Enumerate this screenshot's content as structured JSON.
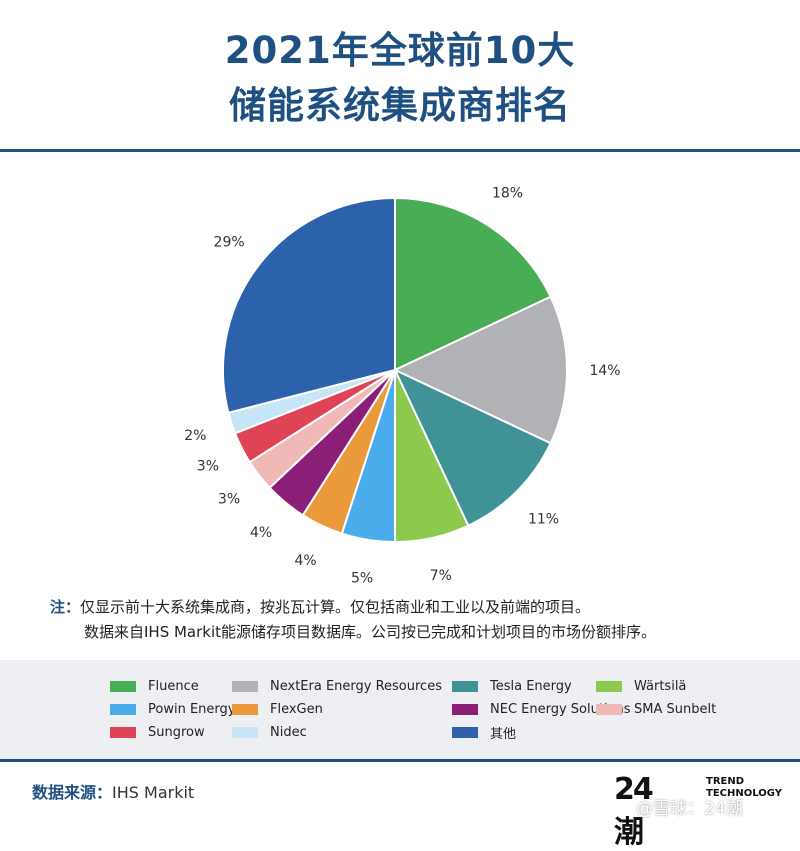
{
  "title": {
    "line1": "2021年全球前10大",
    "line2": "储能系统集成商排名"
  },
  "chart_data": {
    "type": "pie",
    "categories": [
      "Fluence",
      "NextEra Energy Resources",
      "Tesla Energy",
      "Wärtsilä",
      "Powin Energy",
      "FlexGen",
      "NEC Energy Solutions",
      "SMA Sunbelt",
      "Sungrow",
      "Nidec",
      "其他"
    ],
    "values": [
      18,
      14,
      11,
      7,
      5,
      4,
      4,
      3,
      3,
      2,
      29
    ],
    "labels": [
      "18%",
      "14%",
      "11%",
      "7%",
      "5%",
      "4%",
      "4%",
      "3%",
      "3%",
      "2%",
      "29%"
    ],
    "colors": [
      "#49ad56",
      "#b1b2b5",
      "#3f9296",
      "#8dc94d",
      "#4aacea",
      "#ea9a3b",
      "#8b1f77",
      "#f0b9b7",
      "#de4356",
      "#c6e6f8",
      "#2c62ac"
    ],
    "start": "12 o'clock",
    "direction": "clockwise",
    "legend_position": "bottom"
  },
  "note": {
    "label": "注：",
    "line1": "仅显示前十大系统集成商，按兆瓦计算。仅包括商业和工业以及前端的项目。",
    "line2": "数据来自IHS Markit能源储存项目数据库。公司按已完成和计划项目的市场份额排序。"
  },
  "source": {
    "label": "数据来源：",
    "value": "IHS Markit"
  },
  "logo": {
    "mark": "24潮",
    "trend": "TREND",
    "technology": "TECHNOLOGY"
  },
  "watermark": "@雪球：24潮"
}
